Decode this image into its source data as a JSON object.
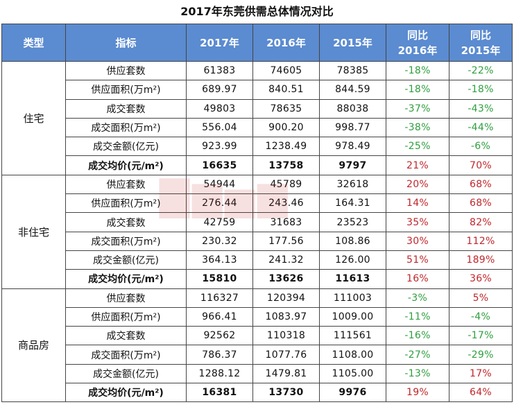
{
  "title": "2017年东莞供需总体情况对比",
  "headers": [
    "类型",
    "指标",
    "2017年",
    "2016年",
    "2015年",
    "同比\n2016年",
    "同比\n2015年"
  ],
  "colors": {
    "header_bg": "#5b8bd0",
    "negative": "#2e9f3e",
    "positive": "#c0262b"
  },
  "groups": [
    {
      "type": "住宅",
      "rows": [
        {
          "metric": "供应套数",
          "y2017": "61383",
          "y2016": "74605",
          "y2015": "78385",
          "yoy2016": "-18%",
          "yoy2015": "-22%"
        },
        {
          "metric": "供应面积(万m²)",
          "y2017": "689.97",
          "y2016": "840.51",
          "y2015": "844.59",
          "yoy2016": "-18%",
          "yoy2015": "-18%"
        },
        {
          "metric": "成交套数",
          "y2017": "49803",
          "y2016": "78635",
          "y2015": "88038",
          "yoy2016": "-37%",
          "yoy2015": "-43%"
        },
        {
          "metric": "成交面积(万m²)",
          "y2017": "556.04",
          "y2016": "900.20",
          "y2015": "998.77",
          "yoy2016": "-38%",
          "yoy2015": "-44%"
        },
        {
          "metric": "成交金额(亿元)",
          "y2017": "923.99",
          "y2016": "1238.49",
          "y2015": "978.49",
          "yoy2016": "-25%",
          "yoy2015": "-6%"
        },
        {
          "metric": "成交均价(元/m²)",
          "y2017": "16635",
          "y2016": "13758",
          "y2015": "9797",
          "yoy2016": "21%",
          "yoy2015": "70%",
          "bold": true
        }
      ]
    },
    {
      "type": "非住宅",
      "rows": [
        {
          "metric": "供应套数",
          "y2017": "54944",
          "y2016": "45789",
          "y2015": "32618",
          "yoy2016": "20%",
          "yoy2015": "68%"
        },
        {
          "metric": "供应面积(万m²)",
          "y2017": "276.44",
          "y2016": "243.46",
          "y2015": "164.31",
          "yoy2016": "14%",
          "yoy2015": "68%"
        },
        {
          "metric": "成交套数",
          "y2017": "42759",
          "y2016": "31683",
          "y2015": "23523",
          "yoy2016": "35%",
          "yoy2015": "82%"
        },
        {
          "metric": "成交面积(万m²)",
          "y2017": "230.32",
          "y2016": "177.56",
          "y2015": "108.86",
          "yoy2016": "30%",
          "yoy2015": "112%"
        },
        {
          "metric": "成交金额(亿元)",
          "y2017": "364.13",
          "y2016": "241.32",
          "y2015": "126.00",
          "yoy2016": "51%",
          "yoy2015": "189%"
        },
        {
          "metric": "成交均价(元/m²)",
          "y2017": "15810",
          "y2016": "13626",
          "y2015": "11613",
          "yoy2016": "16%",
          "yoy2015": "36%",
          "bold": true
        }
      ]
    },
    {
      "type": "商品房",
      "rows": [
        {
          "metric": "供应套数",
          "y2017": "116327",
          "y2016": "120394",
          "y2015": "111003",
          "yoy2016": "-3%",
          "yoy2015": "5%"
        },
        {
          "metric": "供应面积(万m²)",
          "y2017": "966.41",
          "y2016": "1083.97",
          "y2015": "1009.00",
          "yoy2016": "-11%",
          "yoy2015": "-4%"
        },
        {
          "metric": "成交套数",
          "y2017": "92562",
          "y2016": "110318",
          "y2015": "111561",
          "yoy2016": "-16%",
          "yoy2015": "-17%"
        },
        {
          "metric": "成交面积(万m²)",
          "y2017": "786.37",
          "y2016": "1077.76",
          "y2015": "1108.00",
          "yoy2016": "-27%",
          "yoy2015": "-29%"
        },
        {
          "metric": "成交金额(亿元)",
          "y2017": "1288.12",
          "y2016": "1479.81",
          "y2015": "1105.00",
          "yoy2016": "-13%",
          "yoy2015": "17%"
        },
        {
          "metric": "成交均价(元/m²)",
          "y2017": "16381",
          "y2016": "13730",
          "y2015": "9976",
          "yoy2016": "19%",
          "yoy2015": "64%",
          "bold": true
        }
      ]
    }
  ]
}
